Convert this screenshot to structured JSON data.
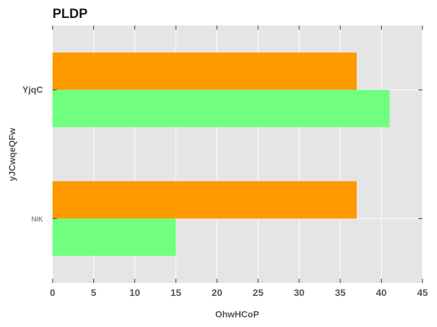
{
  "chart_data": {
    "type": "bar",
    "orientation": "horizontal",
    "title": "PLDP",
    "xlabel": "OhwHCoP",
    "ylabel": "yJCwqeQFw",
    "categories": [
      "NIK",
      "YjqC"
    ],
    "series": [
      {
        "color": "#71ff7f",
        "values": [
          15,
          41
        ]
      },
      {
        "color": "#ff9900",
        "values": [
          37,
          37
        ]
      }
    ],
    "xlim": [
      0,
      45
    ],
    "xticks": [
      "0",
      "5",
      "10",
      "15",
      "20",
      "25",
      "30",
      "35",
      "40",
      "45"
    ],
    "grid": true,
    "background": "#e5e5e5",
    "legend": "none"
  }
}
